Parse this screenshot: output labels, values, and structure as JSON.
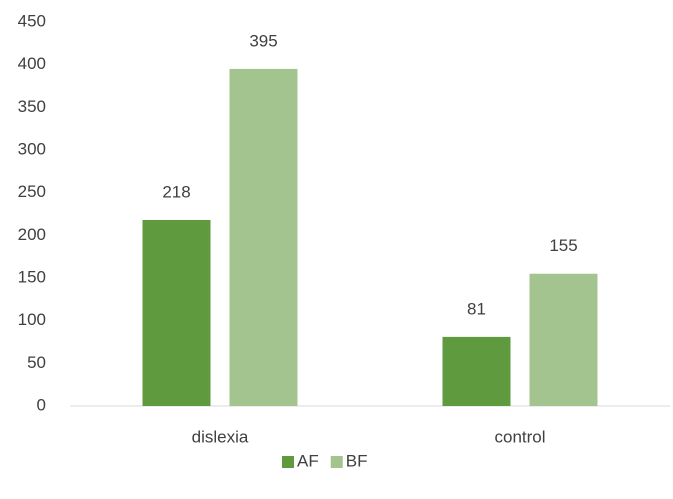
{
  "chart_data": {
    "type": "bar",
    "categories": [
      "dislexia",
      "control"
    ],
    "series": [
      {
        "name": "AF",
        "color": "#5f9a3e",
        "values": [
          218,
          81
        ]
      },
      {
        "name": "BF",
        "color": "#a3c48e",
        "values": [
          395,
          155
        ]
      }
    ],
    "ylim": [
      0,
      450
    ],
    "yticks": [
      0,
      50,
      100,
      150,
      200,
      250,
      300,
      350,
      400,
      450
    ],
    "grid": false,
    "legend": "bottom"
  }
}
